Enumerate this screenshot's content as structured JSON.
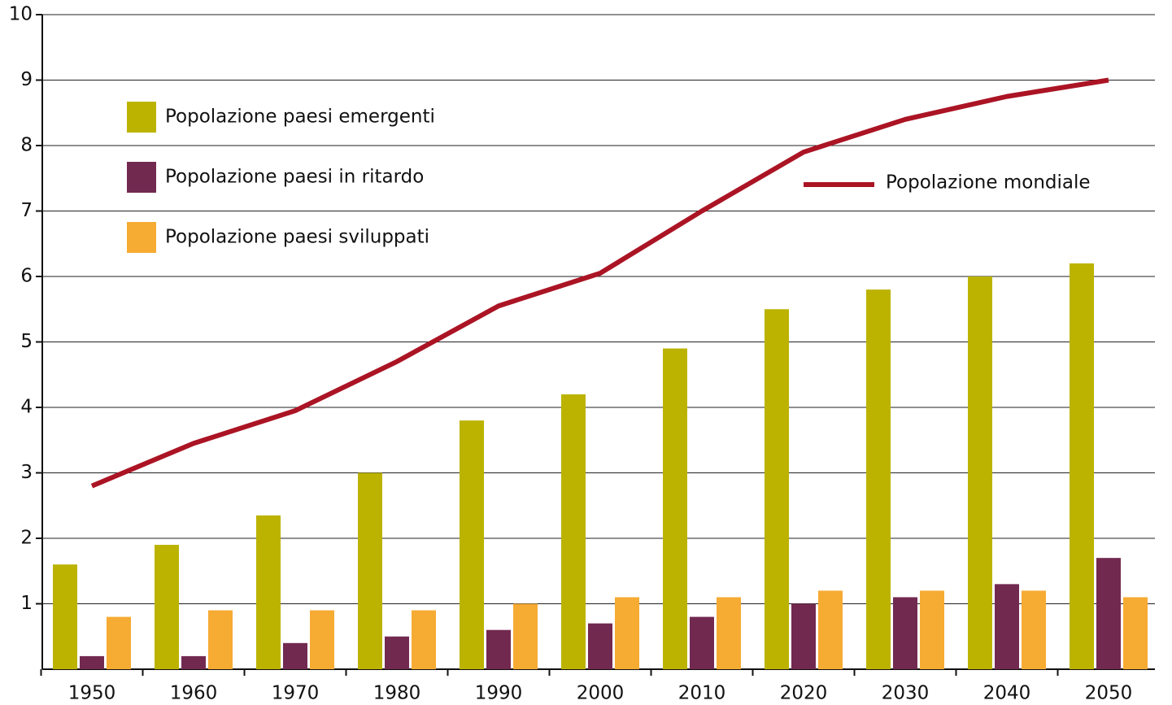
{
  "chart_data": {
    "type": "bar",
    "categories": [
      "1950",
      "1960",
      "1970",
      "1980",
      "1990",
      "2000",
      "2010",
      "2020",
      "2030",
      "2040",
      "2050"
    ],
    "series": [
      {
        "name": "Popolazione paesi emergenti",
        "color": "#bcb300",
        "values": [
          1.6,
          1.9,
          2.35,
          3.0,
          3.8,
          4.2,
          4.9,
          5.5,
          5.8,
          6.0,
          6.2
        ]
      },
      {
        "name": "Popolazione paesi in ritardo",
        "color": "#722950",
        "values": [
          0.2,
          0.2,
          0.4,
          0.5,
          0.6,
          0.7,
          0.8,
          1.0,
          1.1,
          1.3,
          1.7
        ]
      },
      {
        "name": "Popolazione paesi sviluppati",
        "color": "#f6ab33",
        "values": [
          0.8,
          0.9,
          0.9,
          0.9,
          1.0,
          1.1,
          1.1,
          1.2,
          1.2,
          1.2,
          1.1
        ]
      },
      {
        "name": "Popolazione mondiale",
        "color": "#ab1424",
        "type": "line",
        "values": [
          2.8,
          3.45,
          3.95,
          4.7,
          5.55,
          6.05,
          7.0,
          7.9,
          8.4,
          8.75,
          9.0
        ]
      }
    ],
    "ylim": [
      0,
      10
    ],
    "yticks": [
      1,
      2,
      3,
      4,
      5,
      6,
      7,
      8,
      9,
      10
    ],
    "grid": true
  }
}
